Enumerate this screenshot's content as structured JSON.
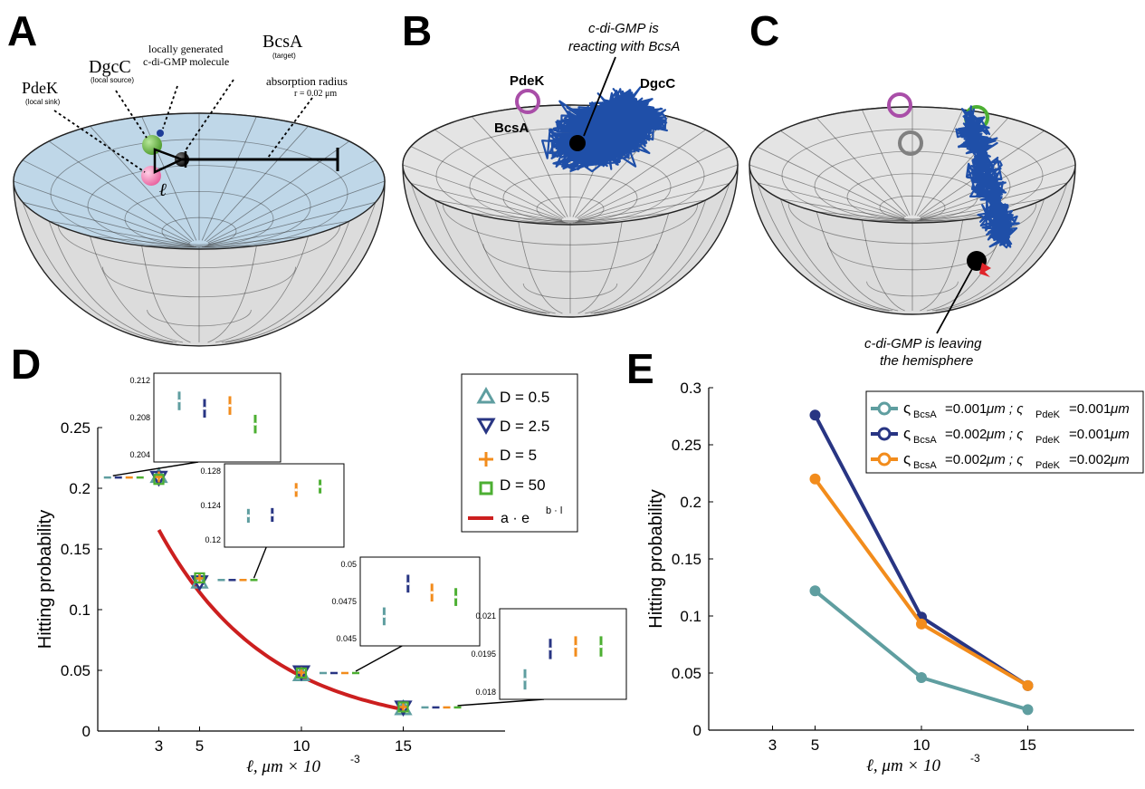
{
  "panels": {
    "A": {
      "letter": "A",
      "pdek": "PdeK",
      "pdek_sub": "(local sink)",
      "dgcc": "DgcC",
      "dgcc_sub": "(local source)",
      "mol1": "locally generated",
      "mol2": "c-di-GMP molecule",
      "bcsa": "BcsA",
      "bcsa_sub": "(target)",
      "abs1": "absorption radius",
      "abs2": "r = 0.02 μm",
      "ell": "ℓ"
    },
    "B": {
      "letter": "B",
      "note1": "c-di-GMP is",
      "note2": "reacting with BcsA",
      "pdek": "PdeK",
      "dgcc": "DgcC",
      "bcsa": "BcsA"
    },
    "C": {
      "letter": "C",
      "note1": "c-di-GMP is leaving",
      "note2": "the hemisphere"
    },
    "D": {
      "letter": "D"
    },
    "E": {
      "letter": "E"
    }
  },
  "colors": {
    "teal": "#5f9ea0",
    "navy": "#283583",
    "orange": "#f28c1c",
    "green": "#4caf32",
    "red": "#cc1f1f",
    "purple": "#a94ea8",
    "traj": "#1f4fa8"
  },
  "chart_data": [
    {
      "type": "scatter",
      "panel": "D",
      "xlabel": "ℓ, μm × 10",
      "xlabel_exp": "-3",
      "ylabel": "Hitting probability",
      "xlim": [
        0,
        20
      ],
      "ylim": [
        0,
        0.25
      ],
      "xticks": [
        "3",
        "5",
        "10",
        "15"
      ],
      "xtick_values": [
        3,
        5,
        10,
        15
      ],
      "yticks": [
        "0",
        "0.05",
        "0.1",
        "0.15",
        "0.2",
        "0.25"
      ],
      "ytick_values": [
        0,
        0.05,
        0.1,
        0.15,
        0.2,
        0.25
      ],
      "legend": [
        "D = 0.5",
        "D = 2.5",
        "D = 5",
        "D = 50",
        "a · e"
      ],
      "legend_fit_exp": "b · l",
      "x": [
        3,
        5,
        10,
        15
      ],
      "series": [
        {
          "name": "D = 0.5",
          "marker": "triangle-up",
          "values": [
            0.2098,
            0.1228,
            0.0465,
            0.0185
          ]
        },
        {
          "name": "D = 2.5",
          "marker": "triangle-down",
          "values": [
            0.209,
            0.1229,
            0.0487,
            0.0197
          ]
        },
        {
          "name": "D = 5",
          "marker": "plus",
          "values": [
            0.2093,
            0.1258,
            0.0481,
            0.0198
          ]
        },
        {
          "name": "D = 50",
          "marker": "square",
          "values": [
            0.2073,
            0.1262,
            0.0478,
            0.0198
          ]
        }
      ],
      "fit": {
        "name": "a · e",
        "a": 0.2893,
        "b": -0.1858,
        "x_range": [
          3,
          15
        ]
      },
      "insets": [
        {
          "ylim": [
            0.204,
            0.212
          ],
          "yticks": [
            "0.212",
            "0.208",
            "0.204"
          ],
          "ytick_values": [
            0.212,
            0.208,
            0.204
          ],
          "values": [
            0.2098,
            0.209,
            0.2093,
            0.2073
          ],
          "err": [
            0.001,
            0.001,
            0.001,
            0.001
          ]
        },
        {
          "ylim": [
            0.12,
            0.128
          ],
          "yticks": [
            "0.128",
            "0.124",
            "0.12"
          ],
          "ytick_values": [
            0.128,
            0.124,
            0.12
          ],
          "values": [
            0.1228,
            0.1229,
            0.1258,
            0.1262
          ],
          "err": [
            0.0008,
            0.0008,
            0.0008,
            0.0008
          ]
        },
        {
          "ylim": [
            0.045,
            0.05
          ],
          "yticks": [
            "0.05",
            "0.0475",
            "0.045"
          ],
          "ytick_values": [
            0.05,
            0.0475,
            0.045
          ],
          "values": [
            0.0465,
            0.0487,
            0.0481,
            0.0478
          ],
          "err": [
            0.0006,
            0.0006,
            0.0006,
            0.0006
          ]
        },
        {
          "ylim": [
            0.018,
            0.021
          ],
          "yticks": [
            "0.021",
            "0.0195",
            "0.018"
          ],
          "ytick_values": [
            0.021,
            0.0195,
            0.018
          ],
          "values": [
            0.0185,
            0.0197,
            0.0198,
            0.0198
          ],
          "err": [
            0.0004,
            0.0004,
            0.0004,
            0.0004
          ]
        }
      ]
    },
    {
      "type": "line",
      "panel": "E",
      "xlabel": "ℓ, μm × 10",
      "xlabel_exp": "-3",
      "ylabel": "Hitting probability",
      "xlim": [
        0,
        20
      ],
      "ylim": [
        0,
        0.3
      ],
      "xticks": [
        "3",
        "5",
        "10",
        "15"
      ],
      "xtick_values": [
        3,
        5,
        10,
        15
      ],
      "yticks": [
        "0",
        "0.05",
        "0.1",
        "0.15",
        "0.2",
        "0.25",
        "0.3"
      ],
      "ytick_values": [
        0,
        0.05,
        0.1,
        0.15,
        0.2,
        0.25,
        0.3
      ],
      "x": [
        5,
        10,
        15
      ],
      "series": [
        {
          "name": "ς_BcsA =0.001μm ; ς_PdeK =0.001μm",
          "sub1": "BcsA",
          "val1": "=0.001",
          "sub2": "PdeK",
          "val2": "=0.001",
          "values": [
            0.122,
            0.046,
            0.018
          ]
        },
        {
          "name": "ς_BcsA =0.002μm ; ς_PdeK =0.001μm",
          "sub1": "BcsA",
          "val1": "=0.002",
          "sub2": "PdeK",
          "val2": "=0.001",
          "values": [
            0.276,
            0.099,
            0.039
          ]
        },
        {
          "name": "ς_BcsA =0.002μm ; ς_PdeK =0.002μm",
          "sub1": "BcsA",
          "val1": "=0.002",
          "sub2": "PdeK",
          "val2": "=0.002",
          "values": [
            0.22,
            0.093,
            0.039
          ]
        }
      ]
    }
  ]
}
